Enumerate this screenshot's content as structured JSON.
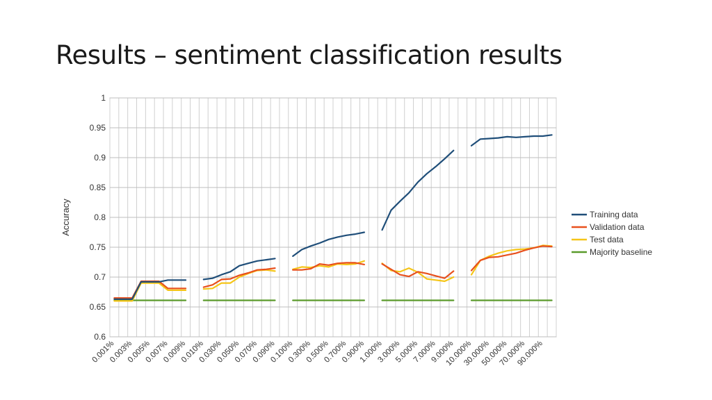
{
  "slide": {
    "title": "Results – sentiment classification results"
  },
  "chart_data": {
    "type": "line",
    "title": "",
    "xlabel": "",
    "ylabel": "Accuracy",
    "ylim": [
      0.6,
      1
    ],
    "yticks": [
      "0.6",
      "0.65",
      "0.7",
      "0.75",
      "0.8",
      "0.85",
      "0.9",
      "0.95",
      "1"
    ],
    "grid": true,
    "legend_position": "right",
    "groups": [
      {
        "x": [
          "0.001%",
          "0.002%",
          "0.003%",
          "0.004%",
          "0.005%",
          "0.006%",
          "0.007%",
          "0.008%",
          "0.009%"
        ],
        "x_labels_shown": [
          "0.001%",
          "0.003%",
          "0.005%",
          "0.007%",
          "0.009%"
        ]
      },
      {
        "x": [
          "0.010%",
          "0.020%",
          "0.030%",
          "0.040%",
          "0.050%",
          "0.060%",
          "0.070%",
          "0.080%",
          "0.090%"
        ],
        "x_labels_shown": [
          "0.010%",
          "0.030%",
          "0.050%",
          "0.070%",
          "0.090%"
        ]
      },
      {
        "x": [
          "0.100%",
          "0.200%",
          "0.300%",
          "0.400%",
          "0.500%",
          "0.600%",
          "0.700%",
          "0.800%",
          "0.900%"
        ],
        "x_labels_shown": [
          "0.100%",
          "0.300%",
          "0.500%",
          "0.700%",
          "0.900%"
        ]
      },
      {
        "x": [
          "1.000%",
          "2.000%",
          "3.000%",
          "4.000%",
          "5.000%",
          "6.000%",
          "7.000%",
          "8.000%",
          "9.000%"
        ],
        "x_labels_shown": [
          "1.000%",
          "3.000%",
          "5.000%",
          "7.000%",
          "9.000%"
        ]
      },
      {
        "x": [
          "10.000%",
          "20.000%",
          "30.000%",
          "40.000%",
          "50.000%",
          "60.000%",
          "70.000%",
          "80.000%",
          "90.000%",
          "100.000%"
        ],
        "x_labels_shown": [
          "10.000%",
          "30.000%",
          "50.000%",
          "70.000%",
          "90.000%"
        ]
      }
    ],
    "series": [
      {
        "name": "Training data",
        "color": "#1f4e79",
        "values": [
          [
            0.663,
            0.663,
            0.663,
            0.692,
            0.692,
            0.692,
            0.695,
            0.695,
            0.695
          ],
          [
            0.696,
            0.698,
            0.704,
            0.709,
            0.719,
            0.723,
            0.727,
            0.729,
            0.731
          ],
          [
            0.735,
            0.746,
            0.752,
            0.757,
            0.763,
            0.767,
            0.77,
            0.772,
            0.775
          ],
          [
            0.779,
            0.812,
            0.827,
            0.841,
            0.859,
            0.873,
            0.885,
            0.898,
            0.912
          ],
          [
            0.92,
            0.931,
            0.932,
            0.933,
            0.935,
            0.934,
            0.935,
            0.936,
            0.936,
            0.938
          ]
        ]
      },
      {
        "name": "Validation data",
        "color": "#e8501d",
        "values": [
          [
            0.665,
            0.665,
            0.665,
            0.693,
            0.693,
            0.693,
            0.681,
            0.681,
            0.681
          ],
          [
            0.683,
            0.687,
            0.696,
            0.697,
            0.703,
            0.707,
            0.712,
            0.713,
            0.715
          ],
          [
            0.712,
            0.712,
            0.714,
            0.722,
            0.72,
            0.723,
            0.724,
            0.724,
            0.721
          ],
          [
            0.722,
            0.713,
            0.704,
            0.701,
            0.709,
            0.706,
            0.702,
            0.698,
            0.71
          ],
          [
            0.711,
            0.728,
            0.733,
            0.734,
            0.737,
            0.74,
            0.745,
            0.749,
            0.752,
            0.751
          ]
        ]
      },
      {
        "name": "Test data",
        "color": "#f5c518",
        "values": [
          [
            0.66,
            0.66,
            0.66,
            0.69,
            0.69,
            0.69,
            0.678,
            0.678,
            0.678
          ],
          [
            0.68,
            0.681,
            0.69,
            0.69,
            0.7,
            0.706,
            0.711,
            0.712,
            0.71
          ],
          [
            0.713,
            0.717,
            0.716,
            0.719,
            0.717,
            0.722,
            0.721,
            0.722,
            0.727
          ],
          [
            0.723,
            0.711,
            0.709,
            0.715,
            0.708,
            0.697,
            0.695,
            0.693,
            0.7
          ],
          [
            0.704,
            0.728,
            0.735,
            0.74,
            0.744,
            0.746,
            0.747,
            0.749,
            0.753,
            0.752
          ]
        ]
      },
      {
        "name": "Majority baseline",
        "color": "#5a9a2a",
        "values": [
          [
            0.661,
            0.661,
            0.661,
            0.661,
            0.661,
            0.661,
            0.661,
            0.661,
            0.661
          ],
          [
            0.661,
            0.661,
            0.661,
            0.661,
            0.661,
            0.661,
            0.661,
            0.661,
            0.661
          ],
          [
            0.661,
            0.661,
            0.661,
            0.661,
            0.661,
            0.661,
            0.661,
            0.661,
            0.661
          ],
          [
            0.661,
            0.661,
            0.661,
            0.661,
            0.661,
            0.661,
            0.661,
            0.661,
            0.661
          ],
          [
            0.661,
            0.661,
            0.661,
            0.661,
            0.661,
            0.661,
            0.661,
            0.661,
            0.661,
            0.661
          ]
        ]
      }
    ]
  }
}
